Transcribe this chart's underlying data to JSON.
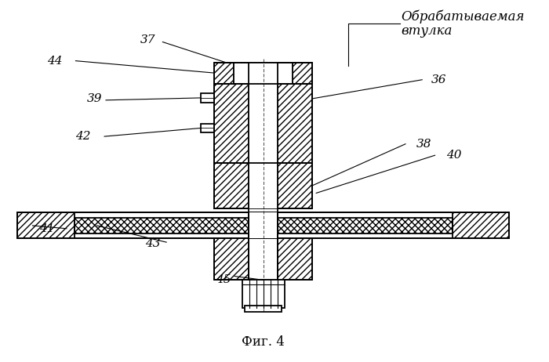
{
  "title": "Фиг. 4",
  "label_top_line1": "Обрабатываемая",
  "label_top_line2": "втулка",
  "bg_color": "#ffffff",
  "lw": 1.3
}
